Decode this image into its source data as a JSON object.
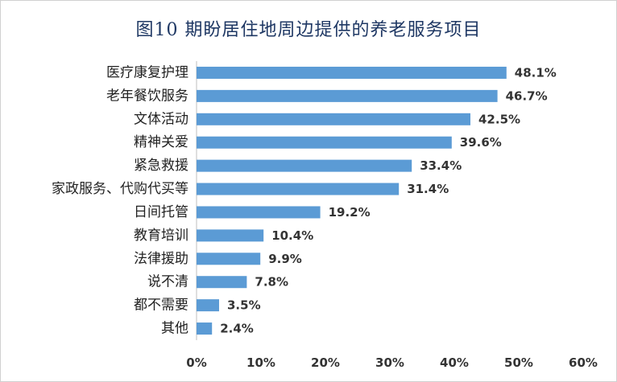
{
  "chart_data": {
    "type": "bar",
    "orientation": "horizontal",
    "title": "图10 期盼居住地周边提供的养老服务项目",
    "categories": [
      "医疗康复护理",
      "老年餐饮服务",
      "文体活动",
      "精神关爱",
      "紧急救援",
      "家政服务、代购代买等",
      "日间托管",
      "教育培训",
      "法律援助",
      "说不清",
      "都不需要",
      "其他"
    ],
    "values": [
      48.1,
      46.7,
      42.5,
      39.6,
      33.4,
      31.4,
      19.2,
      10.4,
      9.9,
      7.8,
      3.5,
      2.4
    ],
    "value_labels": [
      "48.1%",
      "46.7%",
      "42.5%",
      "39.6%",
      "33.4%",
      "31.4%",
      "19.2%",
      "10.4%",
      "9.9%",
      "7.8%",
      "3.5%",
      "2.4%"
    ],
    "xlim": [
      0,
      60
    ],
    "x_ticks": [
      "0%",
      "10%",
      "20%",
      "30%",
      "40%",
      "50%",
      "60%"
    ],
    "grid": false,
    "legend": "none",
    "bar_color": "#5b9bd5"
  }
}
